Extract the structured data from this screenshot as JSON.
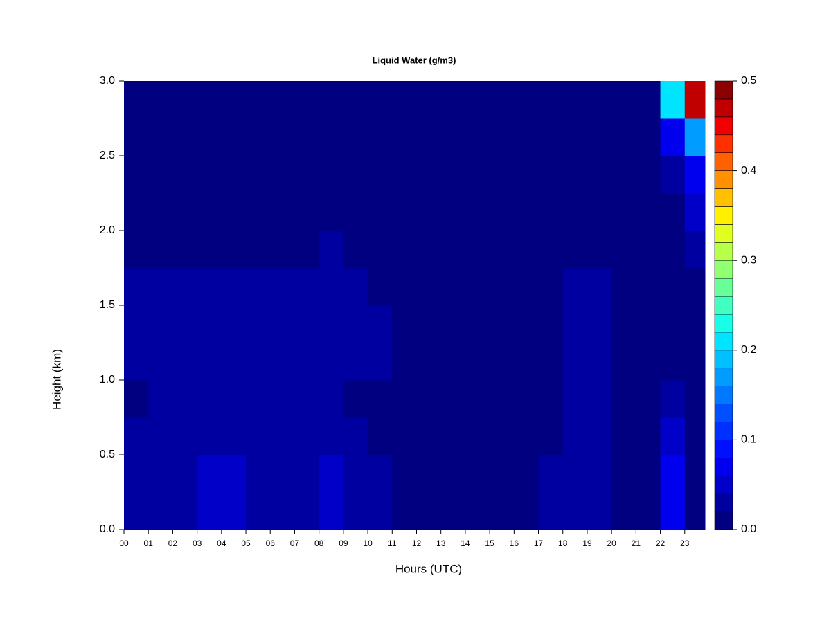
{
  "chart_data": {
    "type": "heatmap",
    "title": "Liquid Water (g/m3)",
    "xlabel": "Hours (UTC)",
    "ylabel": "Height (km)",
    "xlim": [
      0,
      23.83
    ],
    "ylim": [
      0,
      3
    ],
    "xticks": [
      {
        "value": 0,
        "label": "00"
      },
      {
        "value": 1,
        "label": "01"
      },
      {
        "value": 2,
        "label": "02"
      },
      {
        "value": 3,
        "label": "03"
      },
      {
        "value": 4,
        "label": "04"
      },
      {
        "value": 5,
        "label": "05"
      },
      {
        "value": 6,
        "label": "06"
      },
      {
        "value": 7,
        "label": "07"
      },
      {
        "value": 8,
        "label": "08"
      },
      {
        "value": 9,
        "label": "09"
      },
      {
        "value": 10,
        "label": "10"
      },
      {
        "value": 11,
        "label": "11"
      },
      {
        "value": 12,
        "label": "12"
      },
      {
        "value": 13,
        "label": "13"
      },
      {
        "value": 14,
        "label": "14"
      },
      {
        "value": 15,
        "label": "15"
      },
      {
        "value": 16,
        "label": "16"
      },
      {
        "value": 17,
        "label": "17"
      },
      {
        "value": 18,
        "label": "18"
      },
      {
        "value": 19,
        "label": "19"
      },
      {
        "value": 20,
        "label": "20"
      },
      {
        "value": 21,
        "label": "21"
      },
      {
        "value": 22,
        "label": "22"
      },
      {
        "value": 23,
        "label": "23"
      }
    ],
    "yticks": [
      {
        "value": 0,
        "label": "0.0"
      },
      0.5,
      {
        "value": 1,
        "label": "1.0"
      },
      1.5,
      {
        "value": 2,
        "label": "2.0"
      },
      2.5,
      {
        "value": 3,
        "label": "3.0"
      }
    ],
    "x": [
      0,
      1,
      2,
      3,
      4,
      5,
      6,
      7,
      8,
      9,
      10,
      11,
      12,
      13,
      14,
      15,
      16,
      17,
      18,
      19,
      20,
      21,
      22,
      23
    ],
    "y": [
      0,
      0.25,
      0.5,
      0.75,
      1,
      1.25,
      1.5,
      1.75,
      2,
      2.25,
      2.5,
      2.75
    ],
    "z": [
      [
        0.03,
        0.035,
        0.035,
        0.045,
        0.04,
        0.035,
        0.035,
        0.035,
        0.04,
        0.03,
        0.025,
        0.012,
        0.01,
        0.012,
        0.01,
        0.01,
        0.01,
        0.02,
        0.035,
        0.035,
        0.012,
        0.01,
        0.06,
        0.01
      ],
      [
        0.03,
        0.035,
        0.035,
        0.045,
        0.04,
        0.035,
        0.035,
        0.035,
        0.04,
        0.03,
        0.02,
        0.01,
        0.01,
        0.012,
        0.01,
        0.01,
        0.01,
        0.02,
        0.035,
        0.035,
        0.012,
        0.01,
        0.06,
        0.01
      ],
      [
        0.02,
        0.03,
        0.03,
        0.035,
        0.035,
        0.03,
        0.03,
        0.03,
        0.03,
        0.025,
        0.015,
        0.01,
        0.01,
        0.01,
        0.01,
        0.01,
        0.01,
        0.015,
        0.03,
        0.03,
        0.01,
        0.01,
        0.05,
        0.01
      ],
      [
        0.01,
        0.02,
        0.02,
        0.025,
        0.025,
        0.02,
        0.02,
        0.02,
        0.02,
        0.015,
        0.01,
        0.008,
        0.008,
        0.008,
        0.008,
        0.008,
        0.008,
        0.012,
        0.02,
        0.02,
        0.008,
        0.008,
        0.02,
        0.01
      ],
      [
        0.02,
        0.03,
        0.03,
        0.035,
        0.035,
        0.03,
        0.035,
        0.03,
        0.035,
        0.025,
        0.02,
        0.01,
        0.008,
        0.012,
        0.008,
        0.008,
        0.01,
        0.015,
        0.03,
        0.03,
        0.01,
        0.008,
        0.015,
        0.01
      ],
      [
        0.02,
        0.03,
        0.03,
        0.035,
        0.035,
        0.03,
        0.035,
        0.03,
        0.035,
        0.025,
        0.02,
        0.01,
        0.008,
        0.012,
        0.008,
        0.008,
        0.01,
        0.015,
        0.03,
        0.03,
        0.01,
        0.008,
        0.015,
        0.01
      ],
      [
        0.02,
        0.025,
        0.025,
        0.03,
        0.03,
        0.025,
        0.025,
        0.025,
        0.03,
        0.02,
        0.012,
        0.008,
        0.008,
        0.01,
        0.008,
        0.008,
        0.008,
        0.012,
        0.025,
        0.025,
        0.008,
        0.008,
        0.012,
        0.01
      ],
      [
        0.008,
        0.01,
        0.012,
        0.015,
        0.012,
        0.01,
        0.01,
        0.015,
        0.02,
        0.01,
        0.008,
        0.008,
        0.008,
        0.008,
        0.008,
        0.008,
        0.008,
        0.008,
        0.01,
        0.01,
        0.008,
        0.008,
        0.01,
        0.03
      ],
      [
        0.008,
        0.008,
        0.008,
        0.008,
        0.008,
        0.008,
        0.008,
        0.008,
        0.008,
        0.008,
        0.008,
        0.008,
        0.008,
        0.008,
        0.008,
        0.008,
        0.008,
        0.008,
        0.008,
        0.008,
        0.008,
        0.008,
        0.012,
        0.04
      ],
      [
        0.008,
        0.008,
        0.008,
        0.008,
        0.008,
        0.008,
        0.008,
        0.008,
        0.008,
        0.008,
        0.008,
        0.008,
        0.008,
        0.008,
        0.008,
        0.008,
        0.008,
        0.008,
        0.008,
        0.008,
        0.008,
        0.008,
        0.02,
        0.07
      ],
      [
        0.008,
        0.008,
        0.008,
        0.008,
        0.008,
        0.008,
        0.008,
        0.008,
        0.008,
        0.008,
        0.008,
        0.008,
        0.008,
        0.008,
        0.008,
        0.008,
        0.008,
        0.008,
        0.008,
        0.008,
        0.008,
        0.008,
        0.06,
        0.16
      ],
      [
        0.008,
        0.008,
        0.008,
        0.008,
        0.008,
        0.008,
        0.008,
        0.008,
        0.008,
        0.008,
        0.008,
        0.008,
        0.008,
        0.008,
        0.008,
        0.008,
        0.008,
        0.008,
        0.008,
        0.008,
        0.008,
        0.008,
        0.2,
        0.46
      ]
    ],
    "levels": [
      0,
      0.02,
      0.04,
      0.06,
      0.08,
      0.1,
      0.12,
      0.14,
      0.16,
      0.18,
      0.2,
      0.22,
      0.24,
      0.26,
      0.28,
      0.3,
      0.32,
      0.34,
      0.36,
      0.38,
      0.4,
      0.42,
      0.44,
      0.46,
      0.48,
      0.5
    ],
    "colors": [
      "#000080",
      "#0000A0",
      "#0000C8",
      "#0000EE",
      "#0010FF",
      "#0030FF",
      "#0050FF",
      "#0078FF",
      "#009CFF",
      "#00C0FF",
      "#00E4FF",
      "#18FFE8",
      "#40FFC0",
      "#68FF98",
      "#90FF70",
      "#B8FF48",
      "#E0FF20",
      "#FFF000",
      "#FFC000",
      "#FF9000",
      "#FF6000",
      "#FF3000",
      "#F00000",
      "#C00000",
      "#8B0000"
    ],
    "colorbar_ticks": [
      {
        "value": 0,
        "label": "0.0"
      },
      0.1,
      0.2,
      0.3,
      0.4,
      0.5
    ]
  }
}
